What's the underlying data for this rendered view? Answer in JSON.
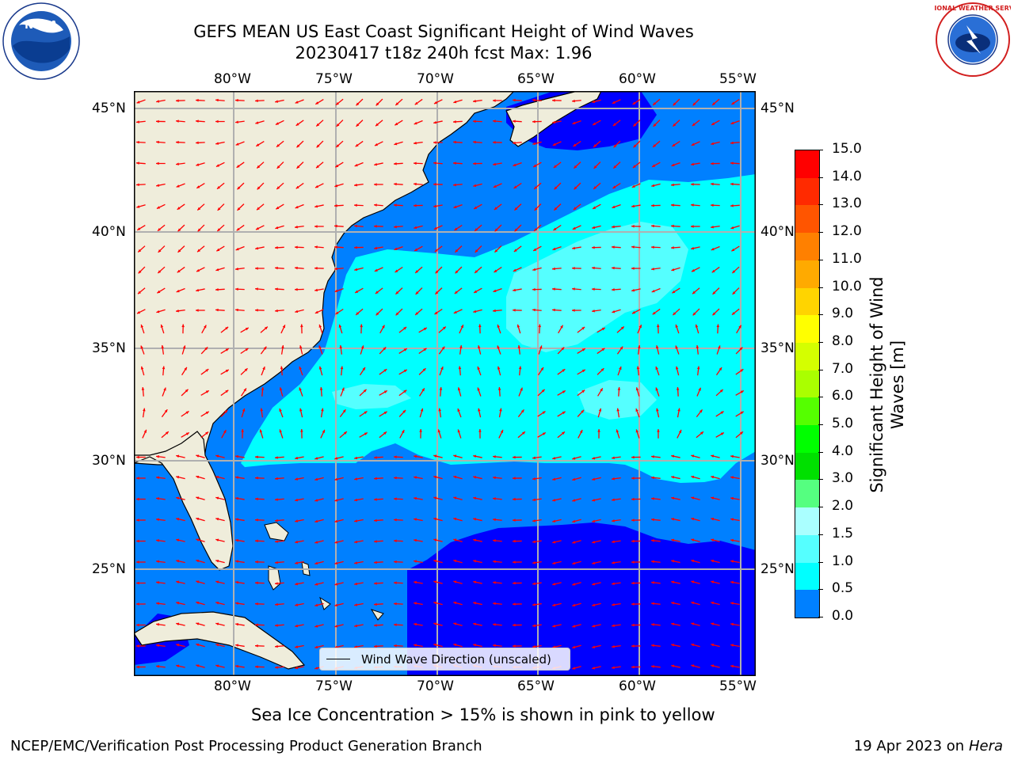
{
  "header": {
    "title_line1": "GEFS MEAN US East Coast Significant Height of Wind Waves",
    "title_line2": "20230417 t18z 240h fcst   Max: 1.96"
  },
  "logos": {
    "noaa": {
      "text": "NOAA"
    },
    "nws": {
      "text": "NATIONAL WEATHER SERVICE"
    }
  },
  "map": {
    "lon_ticks": [
      "80°W",
      "75°W",
      "70°W",
      "65°W",
      "60°W",
      "55°W"
    ],
    "lat_ticks": [
      "45°N",
      "40°N",
      "35°N",
      "30°N",
      "25°N"
    ],
    "legend_label": "Wind Wave Direction (unscaled)",
    "colors": {
      "land": "#efeddb",
      "sea_0_05": "#0000ff",
      "sea_05_1": "#0080ff",
      "sea_1_15": "#00ffff",
      "sea_15_2": "#55ffff",
      "arrow": "#ff0000",
      "grid": "#b0b0b0"
    }
  },
  "colorbar": {
    "label": "Significant Height of Wind Waves [m]",
    "label_line1": "Significant Height of Wind",
    "label_line2": "Waves [m]",
    "ticks": [
      "15.0",
      "14.0",
      "13.0",
      "12.0",
      "11.0",
      "10.0",
      "9.0",
      "8.0",
      "7.0",
      "6.0",
      "5.0",
      "4.0",
      "3.0",
      "2.0",
      "1.5",
      "1.0",
      "0.5",
      "0.0"
    ],
    "colors_top_to_bottom": [
      "#ff0000",
      "#ff2a00",
      "#ff5500",
      "#ff8000",
      "#ffaa00",
      "#ffd400",
      "#ffff00",
      "#d4ff00",
      "#aaff00",
      "#55ff00",
      "#00ff00",
      "#00e000",
      "#55ff80",
      "#aaffff",
      "#55ffff",
      "#00ffff",
      "#0080ff",
      "#0000ff"
    ]
  },
  "footer": {
    "sea_ice_note": "Sea Ice Concentration > 15% is shown in pink to yellow",
    "branch": "NCEP/EMC/Verification Post Processing Product Generation Branch",
    "date_prefix": "19 Apr 2023 on",
    "host": "Hera"
  }
}
